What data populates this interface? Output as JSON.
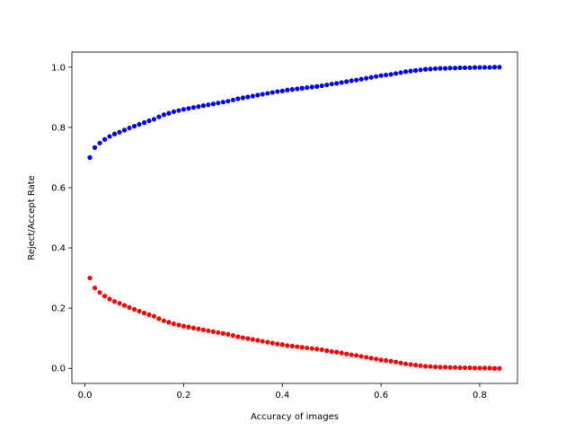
{
  "chart_data": {
    "type": "scatter",
    "title": "",
    "xlabel": "Accuracy of images",
    "ylabel": "Reject/Accept Rate",
    "xlim": [
      -0.0265,
      0.8765
    ],
    "ylim": [
      -0.05,
      1.05
    ],
    "xticks": [
      0.0,
      0.2,
      0.4,
      0.6,
      0.8
    ],
    "yticks": [
      0.0,
      0.2,
      0.4,
      0.6,
      0.8,
      1.0
    ],
    "xtick_labels": [
      "0.0",
      "0.2",
      "0.4",
      "0.6",
      "0.8"
    ],
    "ytick_labels": [
      "0.0",
      "0.2",
      "0.4",
      "0.6",
      "0.8",
      "1.0"
    ],
    "grid": false,
    "x": [
      0.01,
      0.02,
      0.03,
      0.04,
      0.05,
      0.06,
      0.07,
      0.08,
      0.09,
      0.1,
      0.11,
      0.12,
      0.13,
      0.14,
      0.15,
      0.16,
      0.17,
      0.18,
      0.19,
      0.2,
      0.21,
      0.22,
      0.23,
      0.24,
      0.25,
      0.26,
      0.27,
      0.28,
      0.29,
      0.3,
      0.31,
      0.32,
      0.33,
      0.34,
      0.35,
      0.36,
      0.37,
      0.38,
      0.39,
      0.4,
      0.41,
      0.42,
      0.43,
      0.44,
      0.45,
      0.46,
      0.47,
      0.48,
      0.49,
      0.5,
      0.51,
      0.52,
      0.53,
      0.54,
      0.55,
      0.56,
      0.57,
      0.58,
      0.59,
      0.6,
      0.61,
      0.62,
      0.63,
      0.64,
      0.65,
      0.66,
      0.67,
      0.68,
      0.69,
      0.7,
      0.71,
      0.72,
      0.73,
      0.74,
      0.75,
      0.76,
      0.77,
      0.78,
      0.79,
      0.8,
      0.81,
      0.82,
      0.83,
      0.84
    ],
    "series": [
      {
        "color": "#0000ff",
        "values": [
          0.7,
          0.733,
          0.748,
          0.76,
          0.77,
          0.778,
          0.784,
          0.791,
          0.798,
          0.804,
          0.81,
          0.816,
          0.822,
          0.827,
          0.835,
          0.842,
          0.847,
          0.852,
          0.856,
          0.86,
          0.863,
          0.866,
          0.869,
          0.872,
          0.875,
          0.878,
          0.881,
          0.884,
          0.887,
          0.891,
          0.895,
          0.898,
          0.901,
          0.904,
          0.907,
          0.91,
          0.913,
          0.916,
          0.919,
          0.921,
          0.924,
          0.926,
          0.928,
          0.93,
          0.932,
          0.934,
          0.936,
          0.938,
          0.941,
          0.944,
          0.946,
          0.949,
          0.952,
          0.955,
          0.957,
          0.96,
          0.963,
          0.966,
          0.969,
          0.972,
          0.974,
          0.976,
          0.979,
          0.982,
          0.985,
          0.987,
          0.989,
          0.991,
          0.993,
          0.994,
          0.995,
          0.996,
          0.996,
          0.997,
          0.997,
          0.998,
          0.998,
          0.998,
          0.999,
          0.999,
          0.999,
          0.999,
          1.0,
          1.0
        ]
      },
      {
        "color": "#ff0000",
        "values": [
          0.3,
          0.267,
          0.252,
          0.24,
          0.23,
          0.222,
          0.216,
          0.209,
          0.202,
          0.196,
          0.19,
          0.184,
          0.178,
          0.173,
          0.165,
          0.158,
          0.153,
          0.148,
          0.144,
          0.14,
          0.137,
          0.134,
          0.131,
          0.128,
          0.125,
          0.122,
          0.119,
          0.116,
          0.113,
          0.109,
          0.105,
          0.102,
          0.099,
          0.096,
          0.093,
          0.09,
          0.087,
          0.084,
          0.081,
          0.079,
          0.076,
          0.074,
          0.072,
          0.07,
          0.068,
          0.066,
          0.064,
          0.062,
          0.059,
          0.056,
          0.054,
          0.051,
          0.048,
          0.045,
          0.043,
          0.04,
          0.037,
          0.034,
          0.031,
          0.028,
          0.026,
          0.024,
          0.021,
          0.018,
          0.015,
          0.013,
          0.011,
          0.009,
          0.007,
          0.006,
          0.005,
          0.004,
          0.004,
          0.003,
          0.003,
          0.002,
          0.002,
          0.002,
          0.001,
          0.001,
          0.001,
          0.001,
          0.0,
          0.0
        ]
      }
    ]
  }
}
